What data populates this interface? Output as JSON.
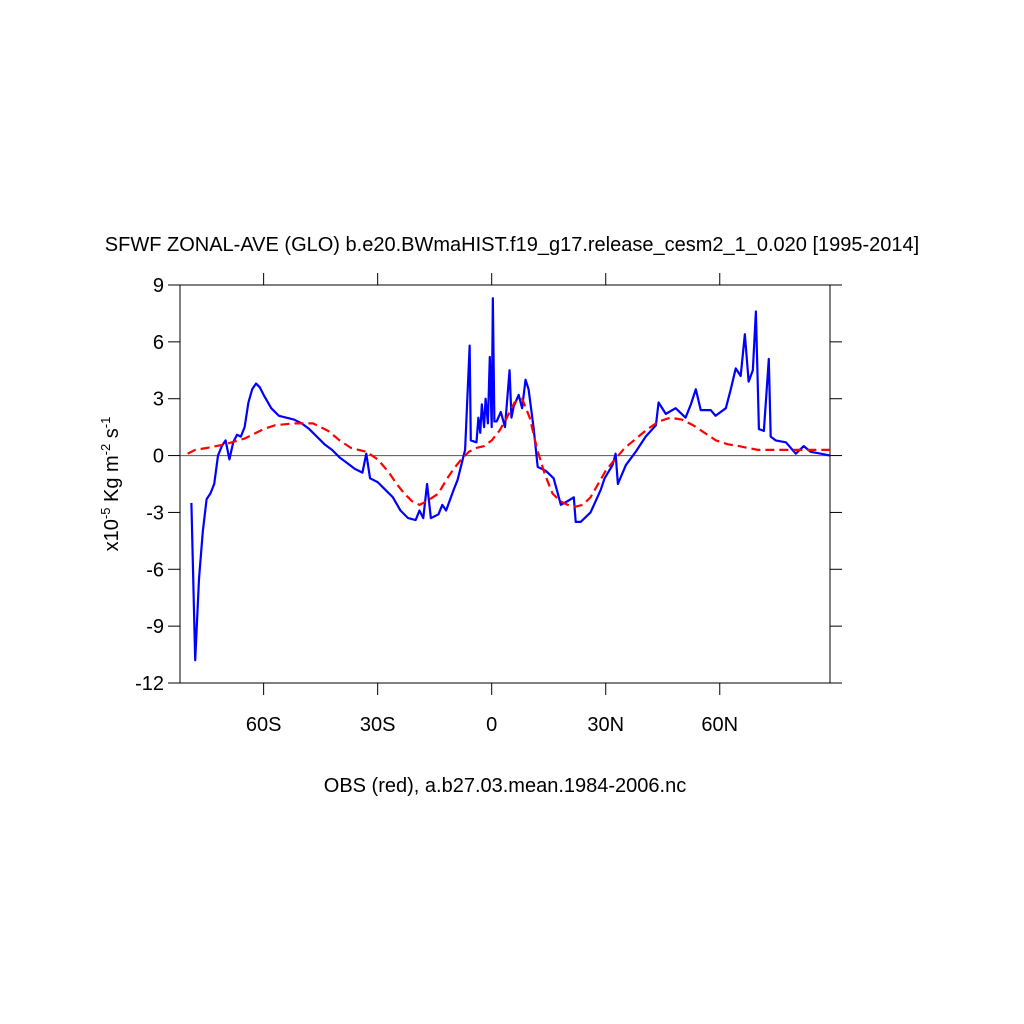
{
  "chart_data": {
    "type": "line",
    "title": "SFWF ZONAL-AVE (GLO) b.e20.BWmaHIST.f19_g17.release_cesm2_1_0.020 [1995-2014]",
    "ylabel": [
      "x10",
      "-5",
      " Kg m",
      "-2",
      " s",
      "-1"
    ],
    "xlabel": "OBS (red), a.b27.03.mean.1984-2006.nc",
    "xlim": [
      -82,
      89
    ],
    "ylim": [
      -12,
      9
    ],
    "xticks": [
      {
        "value": -60,
        "label": "60S"
      },
      {
        "value": -30,
        "label": "30S"
      },
      0,
      {
        "value": 30,
        "label": "30N"
      },
      {
        "value": 60,
        "label": "60N"
      }
    ],
    "yticks": [
      9,
      6,
      3,
      0,
      -3,
      -6,
      -9,
      -12
    ],
    "series": [
      {
        "color": "#0000ff",
        "dash": false,
        "x": [
          -79,
          -78,
          -77,
          -76,
          -75,
          -74,
          -73,
          -72,
          -71,
          -70,
          -69,
          -68,
          -67,
          -66,
          -65,
          -64,
          -63,
          -62,
          -61,
          -60,
          -58,
          -56,
          -54,
          -52,
          -50,
          -48,
          -46,
          -44,
          -42,
          -40,
          -38,
          -36,
          -34,
          -33,
          -32,
          -30,
          -28,
          -26,
          -24,
          -22,
          -20,
          -19,
          -18,
          -17,
          -16,
          -14,
          -13,
          -12,
          -10,
          -9,
          -8,
          -7,
          -5.8,
          -5.5,
          -4,
          -3.5,
          -3,
          -2.6,
          -2,
          -1.6,
          -1,
          -0.5,
          0,
          0.3,
          0.7,
          1.3,
          2.4,
          3.5,
          4.7,
          5.2,
          5.8,
          7.1,
          8,
          8.9,
          9.7,
          11,
          12.1,
          14.2,
          16.3,
          18.2,
          20,
          21.6,
          22.1,
          23.4,
          26,
          28.7,
          29.7,
          31.8,
          32.6,
          33.2,
          35.3,
          37.9,
          40.5,
          43.2,
          43.9,
          45.8,
          48.4,
          51,
          52.4,
          53.7,
          55,
          57.6,
          58.9,
          61.6,
          62.9,
          64.2,
          65.5,
          66.6,
          67.6,
          68.7,
          69.5,
          70.3,
          71.6,
          72.9,
          73.4,
          74.7,
          77.4,
          80,
          82.1,
          83.9,
          86.6,
          89
        ],
        "values": [
          -2.5,
          -10.8,
          -6.5,
          -4,
          -2.3,
          -2,
          -1.5,
          0,
          0.5,
          0.8,
          -0.2,
          0.7,
          1.1,
          1,
          1.5,
          2.8,
          3.5,
          3.8,
          3.6,
          3.2,
          2.5,
          2.1,
          2,
          1.9,
          1.7,
          1.4,
          1,
          0.6,
          0.3,
          -0.1,
          -0.4,
          -0.7,
          -0.9,
          0.1,
          -1.2,
          -1.4,
          -1.8,
          -2.2,
          -2.9,
          -3.3,
          -3.4,
          -2.9,
          -3.3,
          -1.5,
          -3.3,
          -3.1,
          -2.6,
          -2.9,
          -1.8,
          -1.3,
          -0.5,
          0.3,
          5.8,
          0.8,
          0.7,
          2,
          1.2,
          2.7,
          1.5,
          3,
          1.7,
          5.2,
          1.5,
          8.3,
          1.8,
          1.8,
          2.3,
          1.5,
          4.5,
          2,
          2.6,
          3.2,
          2.5,
          4,
          3.5,
          1.5,
          -0.6,
          -0.8,
          -1.2,
          -2.6,
          -2.4,
          -2.2,
          -3.5,
          -3.5,
          -3,
          -1.8,
          -1.2,
          -0.5,
          0.1,
          -1.5,
          -0.5,
          0.2,
          1,
          1.6,
          2.8,
          2.2,
          2.5,
          2,
          2.7,
          3.5,
          2.4,
          2.4,
          2.1,
          2.5,
          3.5,
          4.6,
          4.2,
          6.4,
          3.9,
          4.5,
          7.6,
          1.4,
          1.3,
          5.1,
          1,
          0.8,
          0.7,
          0.1,
          0.5,
          0.2,
          0.1,
          0
        ]
      },
      {
        "color": "#ff0000",
        "dash": true,
        "x": [
          -80,
          -78,
          -75,
          -70,
          -65,
          -60,
          -57,
          -52,
          -47,
          -43,
          -40,
          -37,
          -33,
          -30,
          -27,
          -25,
          -23,
          -21,
          -19,
          -17,
          -14,
          -12,
          -10,
          -8,
          -6,
          -4,
          -2,
          0,
          2,
          4,
          6,
          8,
          10,
          12,
          14,
          16,
          18,
          20,
          22,
          24,
          26,
          28,
          30,
          32,
          35,
          38,
          41,
          44,
          47,
          50,
          53,
          56,
          59,
          62,
          65,
          70,
          75,
          80,
          85,
          89
        ],
        "values": [
          0.1,
          0.3,
          0.4,
          0.6,
          0.9,
          1.4,
          1.6,
          1.7,
          1.7,
          1.3,
          0.8,
          0.4,
          0.2,
          -0.2,
          -0.9,
          -1.5,
          -2,
          -2.4,
          -2.6,
          -2.4,
          -2,
          -1.3,
          -0.7,
          -0.2,
          0.2,
          0.4,
          0.5,
          0.8,
          1.3,
          2,
          2.8,
          3,
          2,
          0.3,
          -1,
          -2,
          -2.4,
          -2.6,
          -2.7,
          -2.6,
          -2.2,
          -1.5,
          -0.8,
          -0.3,
          0.4,
          0.9,
          1.4,
          1.8,
          2,
          1.9,
          1.6,
          1.2,
          0.8,
          0.6,
          0.5,
          0.3,
          0.3,
          0.3,
          0.3,
          0.3
        ]
      }
    ]
  }
}
